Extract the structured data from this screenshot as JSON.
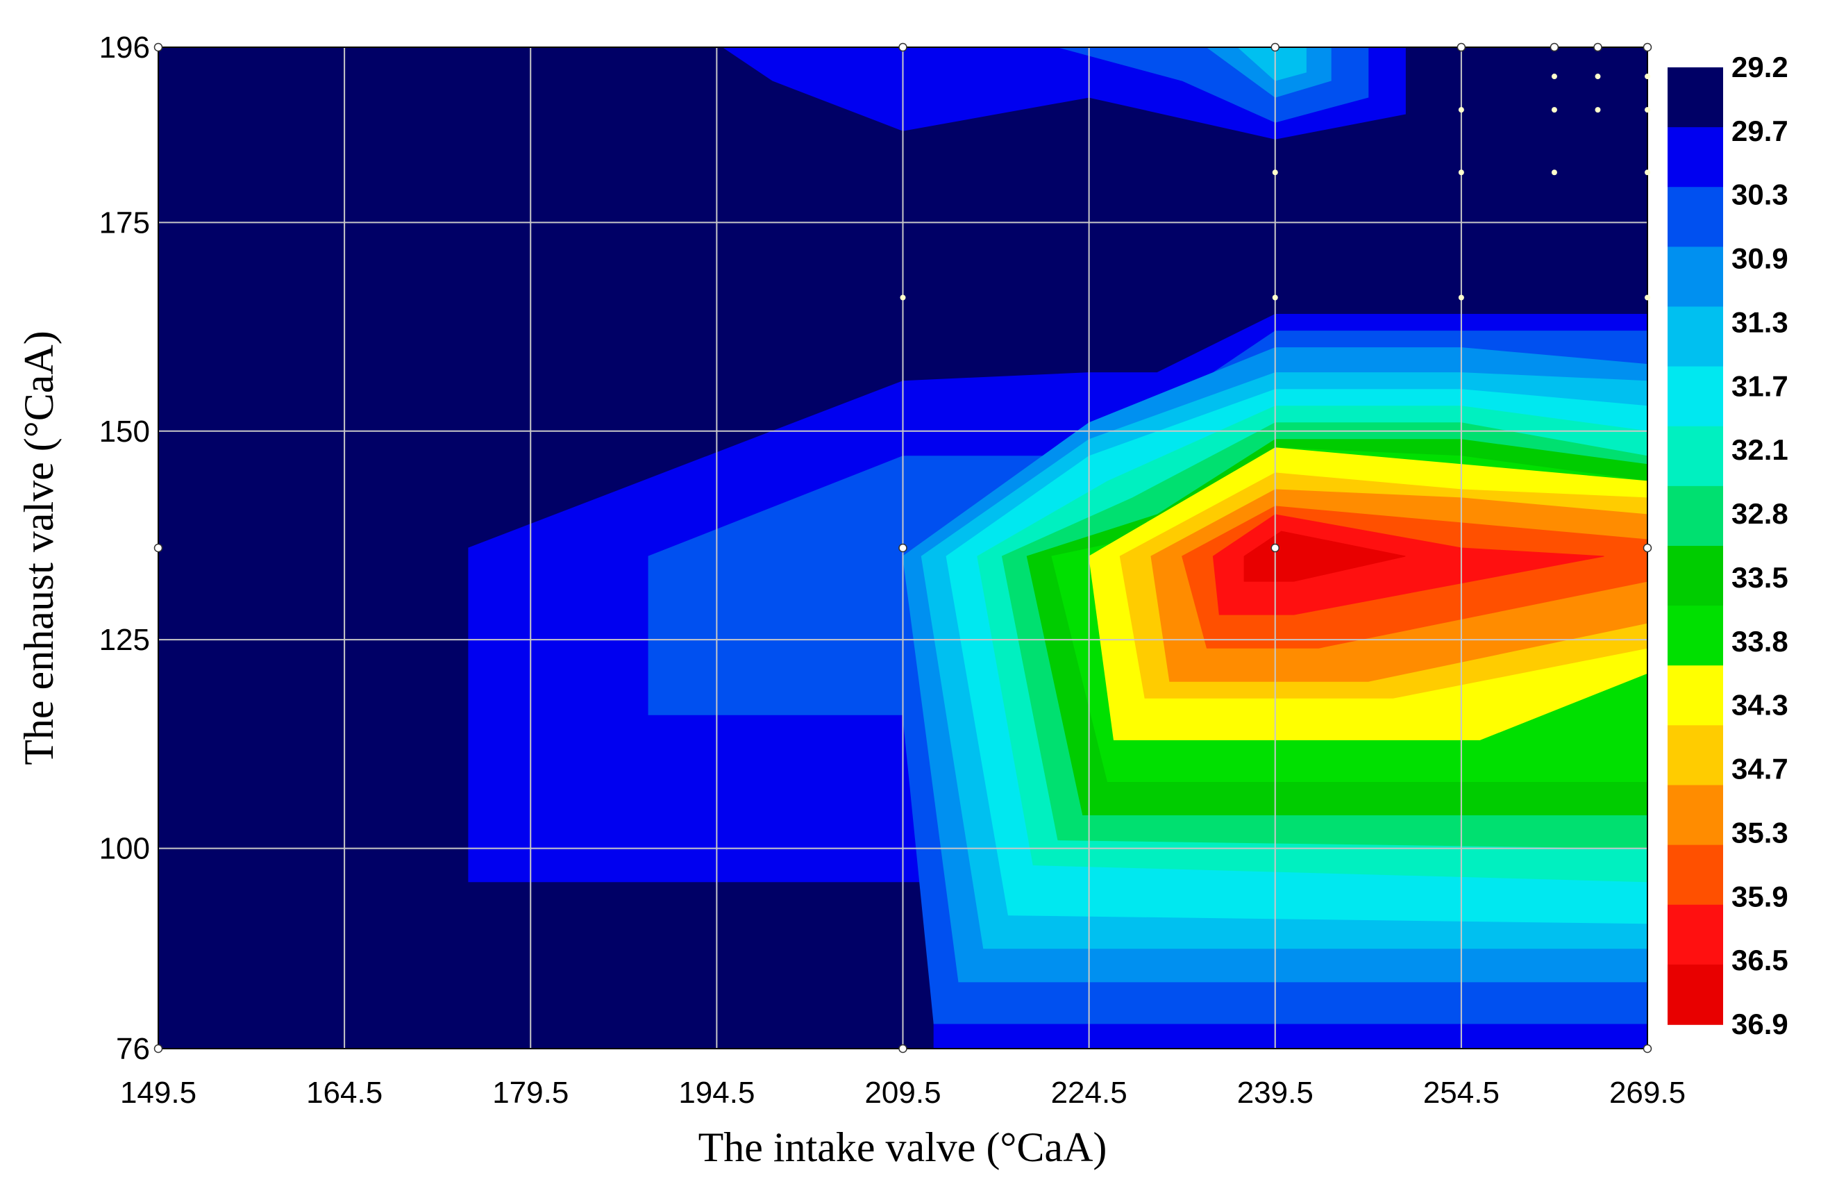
{
  "chart_data": {
    "type": "heatmap",
    "subtype": "filled-contour",
    "xlabel": "The intake valve (°CaA)",
    "ylabel": "The enhaust valve (°CaA)",
    "xlim": [
      149.5,
      269.5
    ],
    "ylim": [
      76,
      196
    ],
    "x_ticks": [
      "149.5",
      "164.5",
      "179.5",
      "194.5",
      "209.5",
      "224.5",
      "239.5",
      "254.5",
      "269.5"
    ],
    "y_ticks": [
      "76",
      "100",
      "125",
      "150",
      "175",
      "196"
    ],
    "grid": true,
    "colorbar": {
      "position": "right",
      "labels": [
        "29.2",
        "29.7",
        "30.3",
        "30.9",
        "31.3",
        "31.7",
        "32.1",
        "32.8",
        "33.5",
        "33.8",
        "34.3",
        "34.7",
        "35.3",
        "35.9",
        "36.5",
        "36.9"
      ],
      "colors": [
        "#000066",
        "#0000f0",
        "#0050f0",
        "#0090f0",
        "#00c0f0",
        "#00e8f0",
        "#00f0c0",
        "#00e070",
        "#00cc00",
        "#00e000",
        "#ffff00",
        "#ffcc00",
        "#ff8c00",
        "#ff5000",
        "#ff1010",
        "#e80000"
      ]
    },
    "peak": {
      "x": 242,
      "y": 135,
      "value": 36.9
    },
    "contours": [
      {
        "level": "29.7",
        "color": "#0000f0",
        "points": [
          [
            174.5,
            96
          ],
          [
            174.5,
            136
          ],
          [
            209.5,
            156
          ],
          [
            224.5,
            157
          ],
          [
            230,
            157
          ],
          [
            239.5,
            164
          ],
          [
            254.5,
            164
          ],
          [
            269.5,
            164
          ],
          [
            269.5,
            76
          ],
          [
            212,
            76
          ],
          [
            212,
            96
          ]
        ]
      },
      {
        "level": "29.7",
        "color": "#0000f0",
        "points": [
          [
            195,
            196
          ],
          [
            250,
            196
          ],
          [
            250,
            188
          ],
          [
            239.5,
            185
          ],
          [
            224.5,
            190
          ],
          [
            209.5,
            186
          ],
          [
            199,
            192
          ]
        ]
      },
      {
        "level": "30.3",
        "color": "#0050f0",
        "points": [
          [
            189,
            116
          ],
          [
            189,
            135
          ],
          [
            209.5,
            147
          ],
          [
            224.5,
            147
          ],
          [
            239.5,
            162
          ],
          [
            254.5,
            162
          ],
          [
            269.5,
            162
          ],
          [
            269.5,
            79
          ],
          [
            212,
            79
          ],
          [
            209.5,
            116
          ]
        ]
      },
      {
        "level": "30.3",
        "color": "#0050f0",
        "points": [
          [
            222,
            196
          ],
          [
            247,
            196
          ],
          [
            247,
            190
          ],
          [
            239.5,
            187
          ],
          [
            232,
            192
          ]
        ]
      },
      {
        "level": "30.9",
        "color": "#0090f0",
        "points": [
          [
            209.5,
            135
          ],
          [
            224.5,
            151
          ],
          [
            239.5,
            160
          ],
          [
            254.5,
            160
          ],
          [
            269.5,
            158
          ],
          [
            269.5,
            84
          ],
          [
            214,
            84
          ]
        ]
      },
      {
        "level": "30.9",
        "color": "#0090f0",
        "points": [
          [
            234,
            196
          ],
          [
            244,
            196
          ],
          [
            244,
            192
          ],
          [
            239.5,
            190
          ]
        ]
      },
      {
        "level": "31.3",
        "color": "#00c0f0",
        "points": [
          [
            211,
            135
          ],
          [
            224.5,
            149
          ],
          [
            239.5,
            157
          ],
          [
            254.5,
            157
          ],
          [
            269.5,
            156
          ],
          [
            269.5,
            88
          ],
          [
            216,
            88
          ]
        ]
      },
      {
        "level": "31.3",
        "color": "#00c0f0",
        "points": [
          [
            236.5,
            196
          ],
          [
            242,
            196
          ],
          [
            242,
            193
          ],
          [
            239.5,
            192
          ]
        ]
      },
      {
        "level": "31.7",
        "color": "#00e8f0",
        "points": [
          [
            213,
            135
          ],
          [
            224.5,
            147
          ],
          [
            239.5,
            155
          ],
          [
            254.5,
            155
          ],
          [
            269.5,
            153
          ],
          [
            269.5,
            91
          ],
          [
            218,
            92
          ]
        ]
      },
      {
        "level": "32.1",
        "color": "#00f0c0",
        "points": [
          [
            215.5,
            135
          ],
          [
            226,
            144
          ],
          [
            239.5,
            153
          ],
          [
            254.5,
            153
          ],
          [
            269.5,
            150
          ],
          [
            269.5,
            96
          ],
          [
            220,
            98
          ]
        ]
      },
      {
        "level": "32.8",
        "color": "#00e070",
        "points": [
          [
            217.5,
            135
          ],
          [
            228,
            142
          ],
          [
            239.5,
            151
          ],
          [
            254.5,
            151
          ],
          [
            269.5,
            147
          ],
          [
            269.5,
            100
          ],
          [
            222,
            101
          ]
        ]
      },
      {
        "level": "33.5",
        "color": "#00cc00",
        "points": [
          [
            219.5,
            135
          ],
          [
            230,
            140
          ],
          [
            239.5,
            149
          ],
          [
            254.5,
            149
          ],
          [
            269.5,
            146
          ],
          [
            269.5,
            104
          ],
          [
            224,
            104
          ]
        ]
      },
      {
        "level": "33.8",
        "color": "#00e000",
        "points": [
          [
            221.5,
            135
          ],
          [
            231,
            138
          ],
          [
            239.5,
            148
          ],
          [
            254.5,
            147
          ],
          [
            269.5,
            144
          ],
          [
            269.5,
            108
          ],
          [
            226,
            108
          ]
        ]
      },
      {
        "level": "34.3",
        "color": "#ffff00",
        "points": [
          [
            224.5,
            135
          ],
          [
            239.5,
            148
          ],
          [
            254.5,
            146
          ],
          [
            269.5,
            144
          ],
          [
            269.5,
            121
          ],
          [
            256,
            113
          ],
          [
            226.5,
            113
          ]
        ]
      },
      {
        "level": "34.7",
        "color": "#ffcc00",
        "points": [
          [
            227,
            135
          ],
          [
            239.5,
            145
          ],
          [
            254.5,
            143
          ],
          [
            269.5,
            142
          ],
          [
            269.5,
            124
          ],
          [
            249,
            118
          ],
          [
            229,
            118
          ]
        ]
      },
      {
        "level": "35.3",
        "color": "#ff8c00",
        "points": [
          [
            229.5,
            135
          ],
          [
            239.5,
            143
          ],
          [
            254.5,
            142
          ],
          [
            269.5,
            140
          ],
          [
            269.5,
            127
          ],
          [
            247,
            120
          ],
          [
            231,
            120
          ]
        ]
      },
      {
        "level": "35.9",
        "color": "#ff5000",
        "points": [
          [
            232,
            135
          ],
          [
            239.5,
            141
          ],
          [
            254.5,
            139
          ],
          [
            269.5,
            137
          ],
          [
            269.5,
            132
          ],
          [
            243,
            124
          ],
          [
            234,
            124
          ]
        ]
      },
      {
        "level": "36.5",
        "color": "#ff1010",
        "points": [
          [
            234.5,
            135
          ],
          [
            239.5,
            140
          ],
          [
            254.5,
            136
          ],
          [
            266,
            135
          ],
          [
            241,
            128
          ],
          [
            235,
            128
          ]
        ]
      },
      {
        "level": "36.9",
        "color": "#e80000",
        "points": [
          [
            237,
            135
          ],
          [
            240,
            138
          ],
          [
            250,
            135
          ],
          [
            241,
            132
          ],
          [
            237,
            132
          ]
        ]
      }
    ],
    "markers": [
      {
        "x": 149.5,
        "y": 76,
        "fill": "white"
      },
      {
        "x": 209.5,
        "y": 76,
        "fill": "white"
      },
      {
        "x": 269.5,
        "y": 76,
        "fill": "white"
      },
      {
        "x": 149.5,
        "y": 136,
        "fill": "white"
      },
      {
        "x": 209.5,
        "y": 136,
        "fill": "white"
      },
      {
        "x": 239.5,
        "y": 136,
        "fill": "white"
      },
      {
        "x": 269.5,
        "y": 136,
        "fill": "white"
      },
      {
        "x": 149.5,
        "y": 196,
        "fill": "white"
      },
      {
        "x": 209.5,
        "y": 196,
        "fill": "white"
      },
      {
        "x": 239.5,
        "y": 196,
        "fill": "white"
      },
      {
        "x": 254.5,
        "y": 196,
        "fill": "white"
      },
      {
        "x": 262,
        "y": 196,
        "fill": "white"
      },
      {
        "x": 265.5,
        "y": 196,
        "fill": "white"
      },
      {
        "x": 269.5,
        "y": 196,
        "fill": "white"
      },
      {
        "x": 209.5,
        "y": 166,
        "fill": "yellow"
      },
      {
        "x": 239.5,
        "y": 166,
        "fill": "yellow"
      },
      {
        "x": 254.5,
        "y": 166,
        "fill": "yellow"
      },
      {
        "x": 269.5,
        "y": 166,
        "fill": "yellow"
      },
      {
        "x": 239.5,
        "y": 181,
        "fill": "yellow"
      },
      {
        "x": 254.5,
        "y": 181,
        "fill": "yellow"
      },
      {
        "x": 262,
        "y": 181,
        "fill": "yellow"
      },
      {
        "x": 269.5,
        "y": 181,
        "fill": "yellow"
      },
      {
        "x": 254.5,
        "y": 188.5,
        "fill": "yellow"
      },
      {
        "x": 262,
        "y": 188.5,
        "fill": "yellow"
      },
      {
        "x": 265.5,
        "y": 188.5,
        "fill": "yellow"
      },
      {
        "x": 269.5,
        "y": 188.5,
        "fill": "yellow"
      },
      {
        "x": 262,
        "y": 192.5,
        "fill": "yellow"
      },
      {
        "x": 265.5,
        "y": 192.5,
        "fill": "yellow"
      },
      {
        "x": 269.5,
        "y": 192.5,
        "fill": "yellow"
      }
    ]
  }
}
